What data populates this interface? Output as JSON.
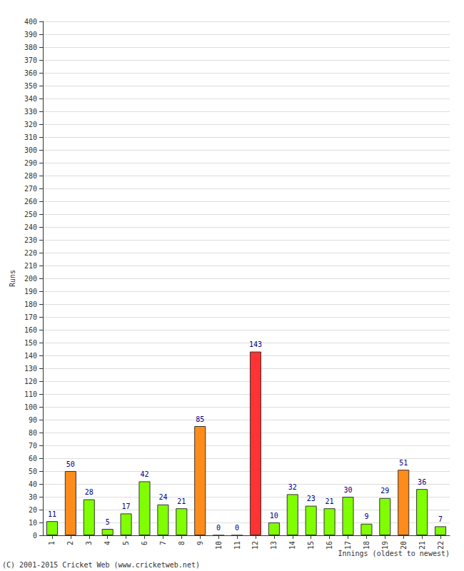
{
  "chart_data": {
    "type": "bar",
    "categories": [
      "1",
      "2",
      "3",
      "4",
      "5",
      "6",
      "7",
      "8",
      "9",
      "10",
      "11",
      "12",
      "13",
      "14",
      "15",
      "16",
      "17",
      "18",
      "19",
      "20",
      "21",
      "22"
    ],
    "values": [
      11,
      50,
      28,
      5,
      17,
      42,
      24,
      21,
      85,
      0,
      0,
      143,
      10,
      32,
      23,
      21,
      30,
      9,
      29,
      51,
      36,
      7
    ],
    "colors": [
      "#80ff00",
      "#ff8c1a",
      "#80ff00",
      "#80ff00",
      "#80ff00",
      "#80ff00",
      "#80ff00",
      "#80ff00",
      "#ff8c1a",
      "#80ff00",
      "#80ff00",
      "#ff3333",
      "#80ff00",
      "#80ff00",
      "#80ff00",
      "#80ff00",
      "#80ff00",
      "#80ff00",
      "#80ff00",
      "#ff8c1a",
      "#80ff00",
      "#80ff00"
    ],
    "xlabel": "Innings (oldest to newest)",
    "ylabel": "Runs",
    "annotations": [
      "(C) 2001-2015 Cricket Web (www.cricketweb.net)"
    ],
    "ylim": [
      0,
      400
    ],
    "yticks": [
      0,
      10,
      20,
      30,
      40,
      50,
      60,
      70,
      80,
      90,
      100,
      110,
      120,
      130,
      140,
      150,
      160,
      170,
      180,
      190,
      200,
      210,
      220,
      230,
      240,
      250,
      260,
      270,
      280,
      290,
      300,
      310,
      320,
      330,
      340,
      350,
      360,
      370,
      380,
      390,
      400
    ],
    "grid": true,
    "data_labels": true
  }
}
